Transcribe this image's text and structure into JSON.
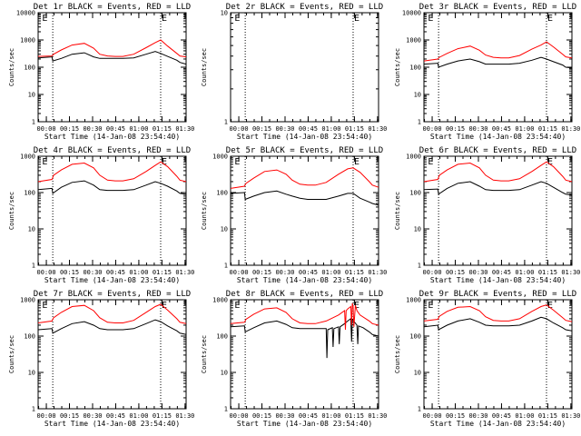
{
  "figure": {
    "x_tick_labels": [
      "00:00",
      "00:15",
      "00:30",
      "00:45",
      "01:00",
      "01:15",
      "01:30"
    ],
    "x_label": "Start Time (14-Jan-08 23:54:40)",
    "y_label": "Counts/sec",
    "marker_label": "E",
    "colors": {
      "events": "#000000",
      "lld": "#ff0000",
      "axes": "#000000",
      "background": "#ffffff"
    }
  },
  "chart_data": [
    {
      "title": "Det 1r  BLACK = Events, RED = LLD",
      "type": "line",
      "yscale": "log",
      "ylim": [
        1,
        10000
      ],
      "xlim": [
        0,
        96
      ],
      "y_tick_labels": [
        "1",
        "10",
        "100",
        "1000",
        "10000"
      ],
      "x_ticks_min": [
        5.33,
        20.33,
        35.33,
        50.33,
        65.33,
        80.33,
        95.33
      ],
      "vlines_min": [
        9.5,
        79.5
      ],
      "markers_min": [
        2,
        79.5
      ],
      "series": [
        {
          "name": "Events",
          "x": [
            0,
            9,
            9.5,
            15,
            22,
            30,
            36,
            40,
            45,
            50,
            55,
            62,
            70,
            76,
            79.5,
            84,
            90,
            92,
            96
          ],
          "y": [
            220,
            240,
            170,
            210,
            300,
            340,
            240,
            210,
            210,
            210,
            210,
            220,
            300,
            380,
            320,
            250,
            180,
            150,
            130
          ]
        },
        {
          "name": "LLD",
          "x": [
            0,
            9,
            10,
            15,
            22,
            30,
            36,
            40,
            45,
            50,
            55,
            62,
            70,
            76,
            79.5,
            84,
            90,
            92,
            96
          ],
          "y": [
            250,
            260,
            300,
            430,
            650,
            750,
            500,
            300,
            260,
            250,
            250,
            300,
            520,
            800,
            1000,
            600,
            320,
            260,
            240
          ]
        }
      ]
    },
    {
      "title": "Det 2r  BLACK = Events, RED = LLD",
      "type": "line",
      "yscale": "log",
      "ylim": [
        1,
        10
      ],
      "xlim": [
        0,
        96
      ],
      "y_tick_labels": [
        "1",
        "10"
      ],
      "x_ticks_min": [
        5.33,
        20.33,
        35.33,
        50.33,
        65.33,
        80.33,
        95.33
      ],
      "vlines_min": [
        9.5,
        79.5
      ],
      "markers_min": [
        2,
        79.5
      ],
      "series": []
    },
    {
      "title": "Det 3r  BLACK = Events, RED = LLD",
      "type": "line",
      "yscale": "log",
      "ylim": [
        1,
        10000
      ],
      "xlim": [
        0,
        96
      ],
      "y_tick_labels": [
        "1",
        "10",
        "100",
        "1000",
        "10000"
      ],
      "x_ticks_min": [
        5.33,
        20.33,
        35.33,
        50.33,
        65.33,
        80.33,
        95.33
      ],
      "vlines_min": [
        9.5,
        79.5
      ],
      "markers_min": [
        2,
        79.5
      ],
      "series": [
        {
          "name": "Events",
          "x": [
            0,
            9,
            9.5,
            15,
            22,
            30,
            36,
            40,
            45,
            50,
            55,
            62,
            70,
            76,
            79.5,
            84,
            90,
            92,
            96
          ],
          "y": [
            130,
            140,
            100,
            130,
            170,
            200,
            160,
            130,
            130,
            130,
            130,
            140,
            180,
            230,
            200,
            160,
            120,
            100,
            95
          ]
        },
        {
          "name": "LLD",
          "x": [
            0,
            9,
            10,
            15,
            22,
            30,
            36,
            40,
            45,
            50,
            55,
            62,
            70,
            76,
            79.5,
            84,
            90,
            92,
            96
          ],
          "y": [
            170,
            200,
            230,
            320,
            480,
            600,
            420,
            280,
            230,
            220,
            220,
            270,
            460,
            650,
            850,
            560,
            300,
            240,
            220
          ]
        }
      ]
    },
    {
      "title": "Det 4r  BLACK = Events, RED = LLD",
      "type": "line",
      "yscale": "log",
      "ylim": [
        1,
        1000
      ],
      "xlim": [
        0,
        96
      ],
      "y_tick_labels": [
        "1",
        "10",
        "100",
        "1000"
      ],
      "x_ticks_min": [
        5.33,
        20.33,
        35.33,
        50.33,
        65.33,
        80.33,
        95.33
      ],
      "vlines_min": [
        9.5,
        79.5
      ],
      "markers_min": [
        2,
        79.5
      ],
      "series": [
        {
          "name": "Events",
          "x": [
            0,
            9,
            9.5,
            15,
            22,
            30,
            36,
            40,
            45,
            50,
            55,
            62,
            70,
            76,
            79.5,
            84,
            90,
            92,
            96
          ],
          "y": [
            120,
            130,
            95,
            140,
            190,
            210,
            160,
            120,
            115,
            115,
            115,
            120,
            160,
            200,
            180,
            150,
            110,
            95,
            90
          ]
        },
        {
          "name": "LLD",
          "x": [
            0,
            9,
            10,
            15,
            22,
            30,
            36,
            40,
            45,
            50,
            55,
            62,
            70,
            76,
            79.5,
            84,
            90,
            92,
            96
          ],
          "y": [
            200,
            230,
            300,
            420,
            600,
            650,
            480,
            300,
            220,
            210,
            210,
            240,
            380,
            560,
            700,
            520,
            280,
            220,
            200
          ]
        }
      ]
    },
    {
      "title": "Det 5r  BLACK = Events, RED = LLD",
      "type": "line",
      "yscale": "log",
      "ylim": [
        1,
        1000
      ],
      "xlim": [
        0,
        96
      ],
      "y_tick_labels": [
        "1",
        "10",
        "100",
        "1000"
      ],
      "x_ticks_min": [
        5.33,
        20.33,
        35.33,
        50.33,
        65.33,
        80.33,
        95.33
      ],
      "vlines_min": [
        9.5,
        79.5
      ],
      "markers_min": [
        2,
        79.5
      ],
      "series": [
        {
          "name": "Events",
          "x": [
            0,
            9,
            9.5,
            15,
            22,
            30,
            36,
            40,
            45,
            50,
            55,
            62,
            70,
            76,
            79.5,
            84,
            90,
            92,
            96
          ],
          "y": [
            95,
            100,
            65,
            80,
            100,
            110,
            90,
            80,
            70,
            65,
            65,
            65,
            80,
            95,
            95,
            70,
            55,
            50,
            45
          ]
        },
        {
          "name": "LLD",
          "x": [
            0,
            9,
            10,
            15,
            22,
            30,
            36,
            40,
            45,
            50,
            55,
            62,
            70,
            76,
            79.5,
            84,
            90,
            92,
            96
          ],
          "y": [
            130,
            150,
            180,
            250,
            380,
            420,
            320,
            220,
            170,
            160,
            160,
            190,
            320,
            450,
            480,
            360,
            200,
            160,
            140
          ]
        }
      ]
    },
    {
      "title": "Det 6r  BLACK = Events, RED = LLD",
      "type": "line",
      "yscale": "log",
      "ylim": [
        1,
        1000
      ],
      "xlim": [
        0,
        96
      ],
      "y_tick_labels": [
        "1",
        "10",
        "100",
        "1000"
      ],
      "x_ticks_min": [
        5.33,
        20.33,
        35.33,
        50.33,
        65.33,
        80.33,
        95.33
      ],
      "vlines_min": [
        9.5,
        79.5
      ],
      "markers_min": [
        2,
        79.5
      ],
      "series": [
        {
          "name": "Events",
          "x": [
            0,
            9,
            9.5,
            15,
            22,
            30,
            36,
            40,
            45,
            50,
            55,
            62,
            70,
            76,
            79.5,
            84,
            90,
            92,
            96
          ],
          "y": [
            120,
            125,
            90,
            130,
            180,
            200,
            150,
            120,
            115,
            115,
            115,
            120,
            160,
            200,
            180,
            140,
            100,
            90,
            85
          ]
        },
        {
          "name": "LLD",
          "x": [
            0,
            9,
            10,
            15,
            22,
            30,
            36,
            40,
            45,
            50,
            55,
            62,
            70,
            76,
            79.5,
            84,
            90,
            92,
            96
          ],
          "y": [
            200,
            230,
            300,
            420,
            600,
            650,
            480,
            300,
            220,
            210,
            210,
            240,
            380,
            560,
            700,
            520,
            280,
            220,
            200
          ]
        }
      ]
    },
    {
      "title": "Det 7r  BLACK = Events, RED = LLD",
      "type": "line",
      "yscale": "log",
      "ylim": [
        1,
        1000
      ],
      "xlim": [
        0,
        96
      ],
      "y_tick_labels": [
        "1",
        "10",
        "100",
        "1000"
      ],
      "x_ticks_min": [
        5.33,
        20.33,
        35.33,
        50.33,
        65.33,
        80.33,
        95.33
      ],
      "vlines_min": [
        9.5,
        79.5
      ],
      "markers_min": [
        2,
        79.5
      ],
      "series": [
        {
          "name": "Events",
          "x": [
            0,
            9,
            9.5,
            15,
            22,
            30,
            36,
            40,
            45,
            50,
            55,
            62,
            70,
            76,
            79.5,
            84,
            90,
            92,
            96
          ],
          "y": [
            150,
            160,
            120,
            160,
            220,
            250,
            200,
            160,
            150,
            150,
            150,
            160,
            220,
            280,
            250,
            190,
            140,
            120,
            110
          ]
        },
        {
          "name": "LLD",
          "x": [
            0,
            9,
            10,
            15,
            22,
            30,
            36,
            40,
            45,
            50,
            55,
            62,
            70,
            76,
            79.5,
            84,
            90,
            92,
            96
          ],
          "y": [
            230,
            260,
            320,
            450,
            650,
            700,
            500,
            320,
            240,
            230,
            230,
            270,
            450,
            650,
            750,
            520,
            300,
            240,
            220
          ]
        }
      ]
    },
    {
      "title": "Det 8r  BLACK = Events, RED = LLD",
      "type": "line",
      "yscale": "log",
      "ylim": [
        1,
        1000
      ],
      "xlim": [
        0,
        96
      ],
      "y_tick_labels": [
        "1",
        "10",
        "100",
        "1000"
      ],
      "x_ticks_min": [
        5.33,
        20.33,
        35.33,
        50.33,
        65.33,
        80.33,
        95.33
      ],
      "vlines_min": [
        9.5,
        79.5
      ],
      "markers_min": [
        2,
        79.5
      ],
      "series": [
        {
          "name": "Events",
          "x": [
            0,
            9,
            9.5,
            15,
            22,
            30,
            36,
            40,
            45,
            50,
            55,
            60,
            62,
            62.5,
            63,
            66,
            66.5,
            67,
            70,
            70.5,
            71,
            74,
            76,
            78,
            78.5,
            79,
            82,
            82.5,
            83,
            86,
            90,
            92,
            96
          ],
          "y": [
            180,
            190,
            130,
            170,
            230,
            260,
            210,
            170,
            160,
            160,
            160,
            160,
            160,
            25,
            150,
            170,
            50,
            160,
            180,
            60,
            180,
            220,
            260,
            300,
            70,
            290,
            200,
            60,
            190,
            170,
            130,
            110,
            100
          ]
        },
        {
          "name": "LLD",
          "x": [
            0,
            9,
            10,
            15,
            22,
            30,
            36,
            40,
            45,
            50,
            55,
            62,
            70,
            74,
            74.5,
            75,
            76,
            78,
            78.5,
            79,
            79.5,
            80,
            81,
            82,
            84,
            90,
            92,
            96
          ],
          "y": [
            220,
            240,
            290,
            400,
            560,
            600,
            450,
            300,
            230,
            220,
            220,
            260,
            380,
            500,
            150,
            500,
            560,
            650,
            200,
            800,
            650,
            180,
            700,
            500,
            380,
            260,
            220,
            200
          ]
        }
      ]
    },
    {
      "title": "Det 9r  BLACK = Events, RED = LLD",
      "type": "line",
      "yscale": "log",
      "ylim": [
        1,
        1000
      ],
      "xlim": [
        0,
        96
      ],
      "y_tick_labels": [
        "1",
        "10",
        "100",
        "1000"
      ],
      "x_ticks_min": [
        5.33,
        20.33,
        35.33,
        50.33,
        65.33,
        80.33,
        95.33
      ],
      "vlines_min": [
        9.5,
        79.5
      ],
      "markers_min": [
        2,
        79.5
      ],
      "series": [
        {
          "name": "Events",
          "x": [
            0,
            9,
            9.5,
            15,
            22,
            30,
            36,
            40,
            45,
            50,
            55,
            62,
            70,
            76,
            79.5,
            84,
            90,
            92,
            96
          ],
          "y": [
            180,
            200,
            150,
            200,
            260,
            300,
            240,
            200,
            190,
            190,
            190,
            200,
            260,
            330,
            300,
            230,
            170,
            150,
            140
          ]
        },
        {
          "name": "LLD",
          "x": [
            0,
            9,
            10,
            15,
            22,
            30,
            36,
            40,
            45,
            50,
            55,
            62,
            70,
            76,
            79.5,
            84,
            90,
            92,
            96
          ],
          "y": [
            260,
            290,
            350,
            480,
            620,
            650,
            500,
            340,
            270,
            260,
            260,
            300,
            480,
            650,
            720,
            520,
            320,
            270,
            250
          ]
        }
      ]
    }
  ]
}
